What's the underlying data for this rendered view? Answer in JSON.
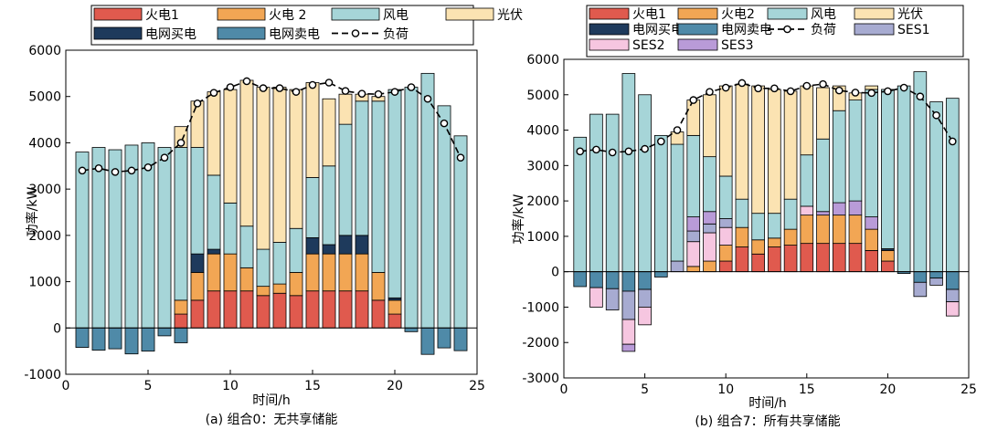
{
  "colors": {
    "fire1": "#e05a4e",
    "fire2": "#f2a654",
    "wind": "#a6d5d8",
    "pv": "#fbe3b2",
    "buy": "#1e3a5c",
    "sell": "#4f8aa8",
    "ses1": "#a7abd1",
    "ses2": "#f6c6e0",
    "ses3": "#b99bd8",
    "load": "#000000"
  },
  "chart_data": [
    {
      "type": "bar",
      "caption": "(a) 组合0：无共享储能",
      "xlabel": "时间/h",
      "ylabel": "功率/kW",
      "xlim": [
        0,
        25
      ],
      "ylim": [
        -1000,
        6000
      ],
      "xticks": [
        0,
        5,
        10,
        15,
        20,
        25
      ],
      "yticks": [
        -1000,
        0,
        1000,
        2000,
        3000,
        4000,
        5000,
        6000
      ],
      "grid": false,
      "legend": {
        "placement": "top",
        "entries": [
          {
            "key": "fire1",
            "label": "火电1"
          },
          {
            "key": "fire2",
            "label": "火电 2"
          },
          {
            "key": "wind",
            "label": "风电"
          },
          {
            "key": "pv",
            "label": "光伏"
          },
          {
            "key": "buy",
            "label": "电网买电"
          },
          {
            "key": "sell",
            "label": "电网卖电"
          },
          {
            "key": "load",
            "label": "负荷"
          }
        ]
      },
      "x": [
        1,
        2,
        3,
        4,
        5,
        6,
        7,
        8,
        9,
        10,
        11,
        12,
        13,
        14,
        15,
        16,
        17,
        18,
        19,
        20,
        21,
        22,
        23,
        24
      ],
      "series": [
        {
          "key": "fire1",
          "values": [
            0,
            0,
            0,
            0,
            0,
            0,
            300,
            600,
            800,
            800,
            800,
            700,
            750,
            700,
            800,
            800,
            800,
            800,
            600,
            300,
            0,
            0,
            0,
            0
          ]
        },
        {
          "key": "fire2",
          "values": [
            0,
            0,
            0,
            0,
            0,
            0,
            300,
            600,
            800,
            800,
            500,
            200,
            200,
            500,
            800,
            800,
            800,
            800,
            600,
            300,
            0,
            0,
            0,
            0
          ]
        },
        {
          "key": "buy",
          "values": [
            0,
            0,
            0,
            0,
            0,
            0,
            0,
            400,
            100,
            0,
            0,
            0,
            0,
            0,
            350,
            200,
            400,
            400,
            0,
            50,
            0,
            0,
            0,
            0
          ]
        },
        {
          "key": "wind",
          "values": [
            3800,
            3900,
            3850,
            3950,
            4000,
            3900,
            3300,
            2300,
            1600,
            1100,
            900,
            800,
            900,
            950,
            1300,
            1700,
            2400,
            2900,
            3700,
            4500,
            5200,
            5500,
            4800,
            4150
          ]
        },
        {
          "key": "pv",
          "values": [
            0,
            0,
            0,
            0,
            0,
            0,
            450,
            1000,
            1800,
            2450,
            3150,
            3500,
            3350,
            3000,
            2050,
            1450,
            650,
            150,
            100,
            0,
            0,
            0,
            0,
            0
          ]
        },
        {
          "key": "sell",
          "values": [
            -420,
            -480,
            -450,
            -560,
            -500,
            -170,
            -320,
            0,
            0,
            0,
            0,
            0,
            0,
            0,
            0,
            0,
            0,
            0,
            0,
            0,
            -80,
            -570,
            -430,
            -490
          ]
        }
      ],
      "load": [
        3400,
        3450,
        3370,
        3400,
        3470,
        3680,
        4000,
        4850,
        5080,
        5200,
        5330,
        5180,
        5180,
        5100,
        5250,
        5300,
        5120,
        5060,
        5050,
        5100,
        5200,
        4950,
        4420,
        3680
      ]
    },
    {
      "type": "bar",
      "caption": "(b) 组合7：所有共享储能",
      "xlabel": "时间/h",
      "ylabel": "功率/kW",
      "xlim": [
        0,
        25
      ],
      "ylim": [
        -3000,
        6000
      ],
      "xticks": [
        0,
        5,
        10,
        15,
        20,
        25
      ],
      "yticks": [
        -3000,
        -2000,
        -1000,
        0,
        1000,
        2000,
        3000,
        4000,
        5000,
        6000
      ],
      "grid": false,
      "legend": {
        "placement": "top",
        "entries": [
          {
            "key": "fire1",
            "label": "火电1"
          },
          {
            "key": "fire2",
            "label": "火电2"
          },
          {
            "key": "wind",
            "label": "风电"
          },
          {
            "key": "pv",
            "label": "光伏"
          },
          {
            "key": "buy",
            "label": "电网买电"
          },
          {
            "key": "sell",
            "label": "电网卖电"
          },
          {
            "key": "load",
            "label": "负荷"
          },
          {
            "key": "ses1",
            "label": "SES1"
          },
          {
            "key": "ses2",
            "label": "SES2"
          },
          {
            "key": "ses3",
            "label": "SES3"
          }
        ]
      },
      "x": [
        1,
        2,
        3,
        4,
        5,
        6,
        7,
        8,
        9,
        10,
        11,
        12,
        13,
        14,
        15,
        16,
        17,
        18,
        19,
        20,
        21,
        22,
        23,
        24
      ],
      "series": [
        {
          "key": "fire1",
          "values": [
            0,
            0,
            0,
            0,
            0,
            0,
            0,
            0,
            0,
            300,
            700,
            500,
            700,
            750,
            800,
            800,
            800,
            800,
            600,
            300,
            0,
            0,
            0,
            0
          ]
        },
        {
          "key": "fire2",
          "values": [
            0,
            0,
            0,
            0,
            0,
            0,
            0,
            150,
            300,
            450,
            550,
            400,
            250,
            450,
            800,
            800,
            800,
            800,
            600,
            300,
            0,
            0,
            0,
            0
          ]
        },
        {
          "key": "ses2",
          "values": [
            0,
            0,
            0,
            0,
            0,
            0,
            0,
            700,
            800,
            500,
            0,
            0,
            0,
            0,
            250,
            0,
            0,
            0,
            0,
            0,
            0,
            0,
            0,
            0
          ]
        },
        {
          "key": "ses1",
          "values": [
            0,
            0,
            0,
            0,
            0,
            0,
            300,
            300,
            250,
            250,
            0,
            0,
            0,
            0,
            0,
            0,
            0,
            0,
            0,
            0,
            0,
            0,
            0,
            0
          ]
        },
        {
          "key": "ses3",
          "values": [
            0,
            0,
            0,
            0,
            0,
            0,
            0,
            400,
            350,
            0,
            0,
            0,
            0,
            0,
            0,
            100,
            350,
            400,
            350,
            0,
            0,
            0,
            0,
            0
          ]
        },
        {
          "key": "buy",
          "values": [
            0,
            0,
            0,
            0,
            0,
            0,
            0,
            0,
            0,
            0,
            0,
            0,
            0,
            0,
            0,
            0,
            0,
            0,
            0,
            50,
            0,
            0,
            0,
            0
          ]
        },
        {
          "key": "wind",
          "values": [
            3800,
            4450,
            4450,
            5600,
            5000,
            3850,
            3300,
            2300,
            1550,
            1200,
            800,
            750,
            700,
            850,
            1450,
            2050,
            2600,
            2850,
            3600,
            4500,
            5250,
            5650,
            4800,
            4900
          ]
        },
        {
          "key": "pv",
          "values": [
            0,
            0,
            0,
            0,
            0,
            0,
            350,
            1000,
            1750,
            2550,
            3250,
            3600,
            3500,
            3050,
            1950,
            1450,
            700,
            200,
            100,
            0,
            0,
            0,
            0,
            0
          ]
        },
        {
          "key": "sell",
          "values": [
            -420,
            -450,
            -480,
            -550,
            -500,
            -150,
            0,
            0,
            0,
            0,
            0,
            0,
            0,
            0,
            0,
            0,
            0,
            0,
            0,
            0,
            -50,
            -300,
            -180,
            -500
          ]
        },
        {
          "key": "ses1_neg",
          "values": [
            0,
            0,
            -600,
            -800,
            -500,
            0,
            0,
            0,
            0,
            0,
            0,
            0,
            0,
            0,
            0,
            0,
            0,
            0,
            0,
            0,
            0,
            -400,
            -200,
            -350
          ]
        },
        {
          "key": "ses2_neg",
          "values": [
            0,
            -550,
            0,
            -700,
            -500,
            0,
            0,
            0,
            0,
            0,
            0,
            0,
            0,
            0,
            0,
            0,
            0,
            0,
            0,
            0,
            0,
            0,
            0,
            -400
          ]
        },
        {
          "key": "ses3_neg",
          "values": [
            0,
            0,
            0,
            -200,
            0,
            0,
            0,
            0,
            0,
            0,
            0,
            0,
            0,
            0,
            0,
            0,
            0,
            0,
            0,
            0,
            0,
            0,
            0,
            0
          ]
        }
      ],
      "load": [
        3400,
        3450,
        3370,
        3400,
        3470,
        3680,
        4000,
        4850,
        5080,
        5200,
        5330,
        5180,
        5180,
        5100,
        5250,
        5300,
        5120,
        5060,
        5050,
        5100,
        5200,
        4950,
        4420,
        3680
      ]
    }
  ]
}
